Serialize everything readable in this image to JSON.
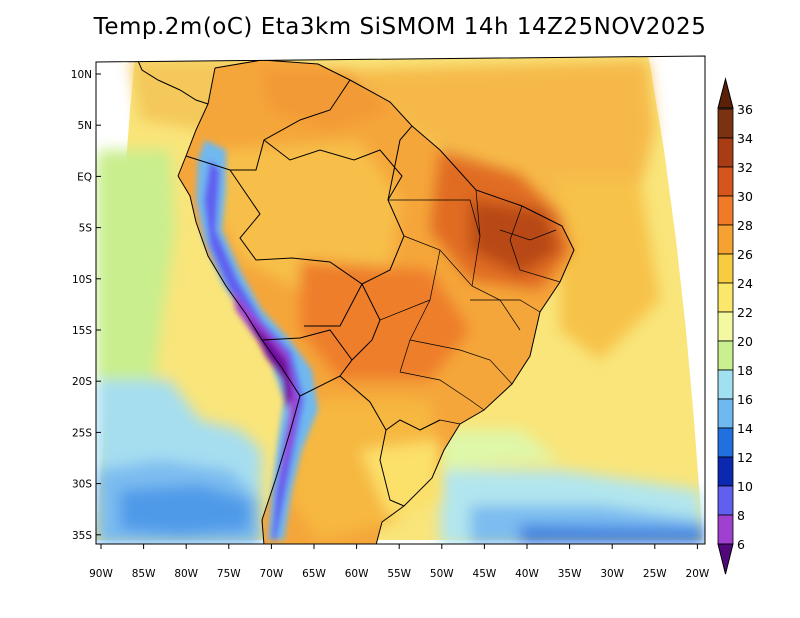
{
  "title": "Temp.2m(oC) Eta3km SiSMOM 14h 14Z25NOV2025",
  "lat_labels": [
    "10N",
    "5N",
    "EQ",
    "5S",
    "10S",
    "15S",
    "20S",
    "25S",
    "30S",
    "35S"
  ],
  "lat_values": [
    10,
    5,
    0,
    -5,
    -10,
    -15,
    -20,
    -25,
    -30,
    -35
  ],
  "lon_labels": [
    "90W",
    "85W",
    "80W",
    "75W",
    "70W",
    "65W",
    "60W",
    "55W",
    "50W",
    "45W",
    "40W",
    "35W",
    "30W",
    "25W",
    "20W"
  ],
  "lon_values": [
    -90,
    -85,
    -80,
    -75,
    -70,
    -65,
    -60,
    -55,
    -50,
    -45,
    -40,
    -35,
    -30,
    -25,
    -20
  ],
  "colorbar": {
    "labels": [
      "36",
      "34",
      "32",
      "30",
      "28",
      "26",
      "24",
      "22",
      "20",
      "18",
      "16",
      "14",
      "12",
      "10",
      "8",
      "6"
    ],
    "colors": [
      "#7a3210",
      "#a83c14",
      "#d4561c",
      "#f07a28",
      "#f5a232",
      "#f8cc40",
      "#fbe86a",
      "#f4f8a0",
      "#c8f090",
      "#a0e0f0",
      "#70b8f0",
      "#2070e0",
      "#0a28b0",
      "#6060f0",
      "#a040d0",
      "#7010a0"
    ],
    "top_cap": "#5a2008",
    "bottom_cap": "#50087a"
  }
}
